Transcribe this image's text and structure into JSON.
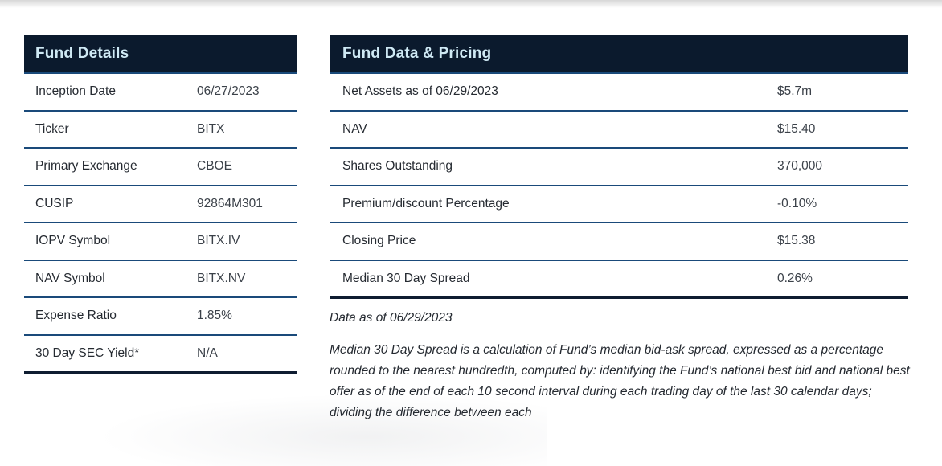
{
  "theme": {
    "header_bg": "#0b1a2d",
    "header_text": "#cfe9f4",
    "separator_line": "#1a4a7a",
    "bottom_border": "#0f1d31",
    "body_text": "#252a31"
  },
  "fund_details": {
    "title": "Fund Details",
    "rows": [
      {
        "label": "Inception Date",
        "value": "06/27/2023"
      },
      {
        "label": "Ticker",
        "value": "BITX"
      },
      {
        "label": "Primary Exchange",
        "value": "CBOE"
      },
      {
        "label": "CUSIP",
        "value": "92864M301"
      },
      {
        "label": "IOPV Symbol",
        "value": "BITX.IV"
      },
      {
        "label": "NAV Symbol",
        "value": "BITX.NV"
      },
      {
        "label": "Expense Ratio",
        "value": "1.85%"
      },
      {
        "label": "30 Day SEC Yield*",
        "value": "N/A"
      }
    ]
  },
  "fund_data_pricing": {
    "title": "Fund Data & Pricing",
    "rows": [
      {
        "label": "Net Assets as of 06/29/2023",
        "value": "$5.7m"
      },
      {
        "label": "NAV",
        "value": "$15.40"
      },
      {
        "label": "Shares Outstanding",
        "value": "370,000"
      },
      {
        "label": "Premium/discount Percentage",
        "value": "-0.10%"
      },
      {
        "label": "Closing Price",
        "value": "$15.38"
      },
      {
        "label": "Median 30 Day Spread",
        "value": "0.26%"
      }
    ]
  },
  "footnotes": {
    "data_as_of": "Data as of 06/29/2023",
    "median_spread_note": "Median 30 Day Spread is a calculation of Fund’s median bid-ask spread, expressed as a percentage rounded to the nearest hundredth, computed by: identifying the Fund’s national best bid and national best offer as of the end of each 10 second interval during each trading day of the last 30 calendar days; dividing the difference between each"
  }
}
